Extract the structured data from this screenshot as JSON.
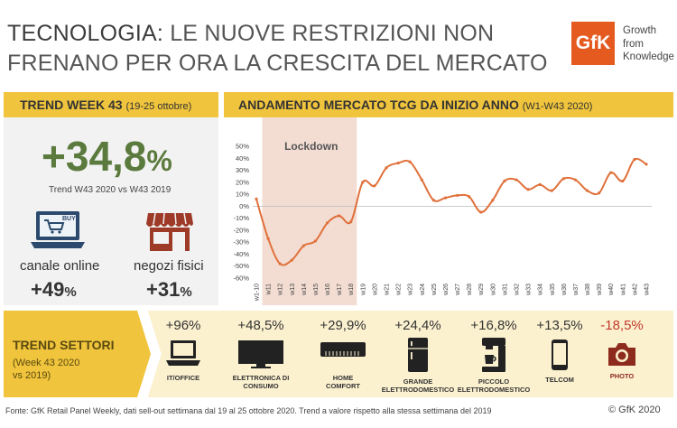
{
  "title": {
    "part1_strong": "TECNOLOGIA:",
    "part1_rest": " LE NUOVE RESTRIZIONI NON",
    "part2": "FRENANO PER ORA LA CRESCITA DEL MERCATO"
  },
  "logo": {
    "mark": "GfK",
    "tagline": [
      "Growth",
      "from",
      "Knowledge"
    ]
  },
  "trend_week": {
    "heading": "TREND WEEK 43",
    "dates": "(19-25 ottobre)",
    "big_value": "+34,8",
    "big_unit": "%",
    "caption": "Trend W43 2020 vs W43 2019",
    "buy_label": "BUY",
    "online": {
      "label": "canale online",
      "value": "+49",
      "unit": "%"
    },
    "stores": {
      "label": "negozi fisici",
      "value": "+31",
      "unit": "%"
    }
  },
  "market_heading": "ANDAMENTO MERCATO TCG DA INIZIO ANNO",
  "market_subheading": "(W1-W43 2020)",
  "chart_data": {
    "type": "line",
    "annotation": "Lockdown",
    "x": [
      "w1-10",
      "w11",
      "w12",
      "w13",
      "w14",
      "w15",
      "w16",
      "w17",
      "w18",
      "w19",
      "w20",
      "w21",
      "w22",
      "w23",
      "w24",
      "w25",
      "w26",
      "w27",
      "w28",
      "w29",
      "w30",
      "w31",
      "w32",
      "w33",
      "w34",
      "w35",
      "w36",
      "w37",
      "w38",
      "w39",
      "w40",
      "w41",
      "w42",
      "w43"
    ],
    "series": [
      {
        "values": [
          6,
          -27,
          -48,
          -45,
          -33,
          -29,
          -14,
          -8,
          -13,
          20,
          17,
          32,
          36,
          37,
          22,
          5,
          7,
          9,
          8,
          -5,
          5,
          21,
          22,
          14,
          18,
          13,
          23,
          22,
          13,
          11,
          28,
          21,
          39,
          35
        ]
      }
    ],
    "yticks": [
      "50%",
      "40%",
      "30%",
      "20%",
      "10%",
      "0%",
      "-10%",
      "-20%",
      "-30%",
      "-40%",
      "-50%",
      "-60%"
    ],
    "ylim": [
      -60,
      50
    ],
    "lockdown_range": [
      "w11",
      "w18"
    ],
    "line_color": "#e0703a"
  },
  "sectors": {
    "heading": "TREND SETTORI",
    "sub1": "(Week 43 2020",
    "sub2": "vs 2019)",
    "items": [
      {
        "value": "+96%",
        "label1": "IT/OFFICE",
        "label2": "",
        "icon": "laptop-icon",
        "neg": false
      },
      {
        "value": "+48,5%",
        "label1": "ELETTRONICA DI",
        "label2": "CONSUMO",
        "icon": "tv-icon",
        "neg": false
      },
      {
        "value": "+29,9%",
        "label1": "HOME",
        "label2": "COMFORT",
        "icon": "air-conditioner-icon",
        "neg": false
      },
      {
        "value": "+24,4%",
        "label1": "GRANDE",
        "label2": "ELETTRODOMESTICO",
        "icon": "fridge-icon",
        "neg": false
      },
      {
        "value": "+16,8%",
        "label1": "PICCOLO",
        "label2": "ELETTRODOMESTICO",
        "icon": "coffee-machine-icon",
        "neg": false
      },
      {
        "value": "+13,5%",
        "label1": "TELCOM",
        "label2": "",
        "icon": "smartphone-icon",
        "neg": false
      },
      {
        "value": "-18,5%",
        "label1": "PHOTO",
        "label2": "",
        "icon": "camera-icon",
        "neg": true
      }
    ],
    "neg_color": "#c0392b"
  },
  "footer": {
    "source": "Fonte: GfK Retail Panel Weekly, dati sell-out settimana dal 19 al 25 ottobre 2020. Trend a valore rispetto alla stessa settimana del 2019",
    "copyright": "© GfK 2020"
  }
}
